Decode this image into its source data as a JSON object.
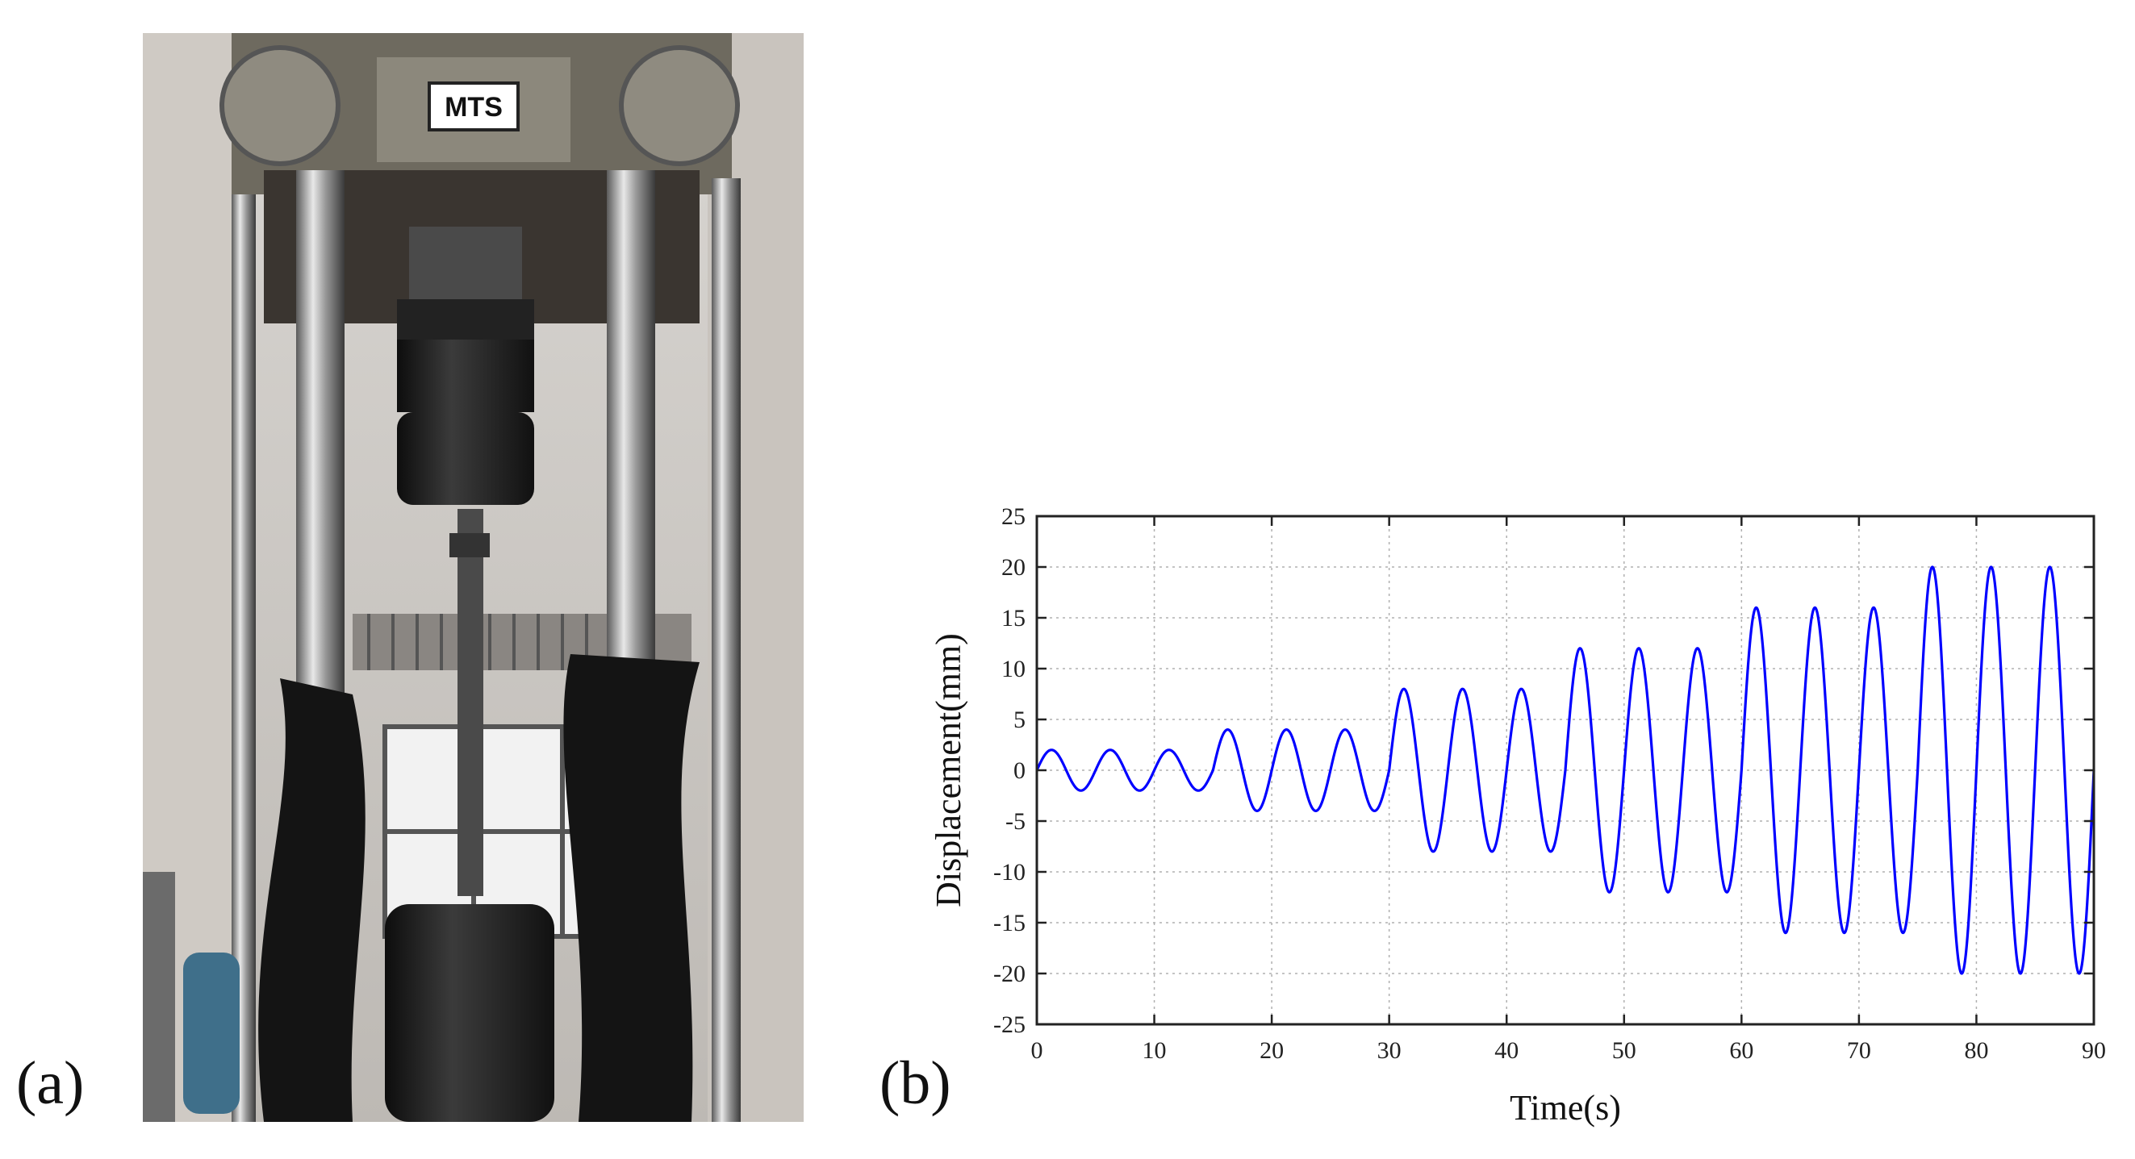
{
  "panels": {
    "a_label": "(a)",
    "b_label": "(b)"
  },
  "photo": {
    "machine_badge": "MTS",
    "description_icon": "testing-machine-photo"
  },
  "chart_data": {
    "type": "line",
    "title": "",
    "xlabel": "Time(s)",
    "ylabel": "Displacement(mm)",
    "xlim": [
      0,
      90
    ],
    "ylim": [
      -25,
      25
    ],
    "x_ticks": [
      0,
      10,
      20,
      30,
      40,
      50,
      60,
      70,
      80,
      90
    ],
    "y_ticks": [
      -25,
      -20,
      -15,
      -10,
      -5,
      0,
      5,
      10,
      15,
      20,
      25
    ],
    "grid": true,
    "legend": "none",
    "series": [
      {
        "color": "#0000ff",
        "function": "sinusoid",
        "period_s": 5,
        "amplitude_steps": [
          {
            "t_start": 0,
            "t_end": 15,
            "amplitude": 2
          },
          {
            "t_start": 15,
            "t_end": 30,
            "amplitude": 4
          },
          {
            "t_start": 30,
            "t_end": 45,
            "amplitude": 8
          },
          {
            "t_start": 45,
            "t_end": 60,
            "amplitude": 12
          },
          {
            "t_start": 60,
            "t_end": 75,
            "amplitude": 16
          },
          {
            "t_start": 75,
            "t_end": 90,
            "amplitude": 20
          }
        ]
      }
    ]
  },
  "colors": {
    "line": "#0000ff",
    "axis": "#222222",
    "grid": "#b0b0b0"
  }
}
